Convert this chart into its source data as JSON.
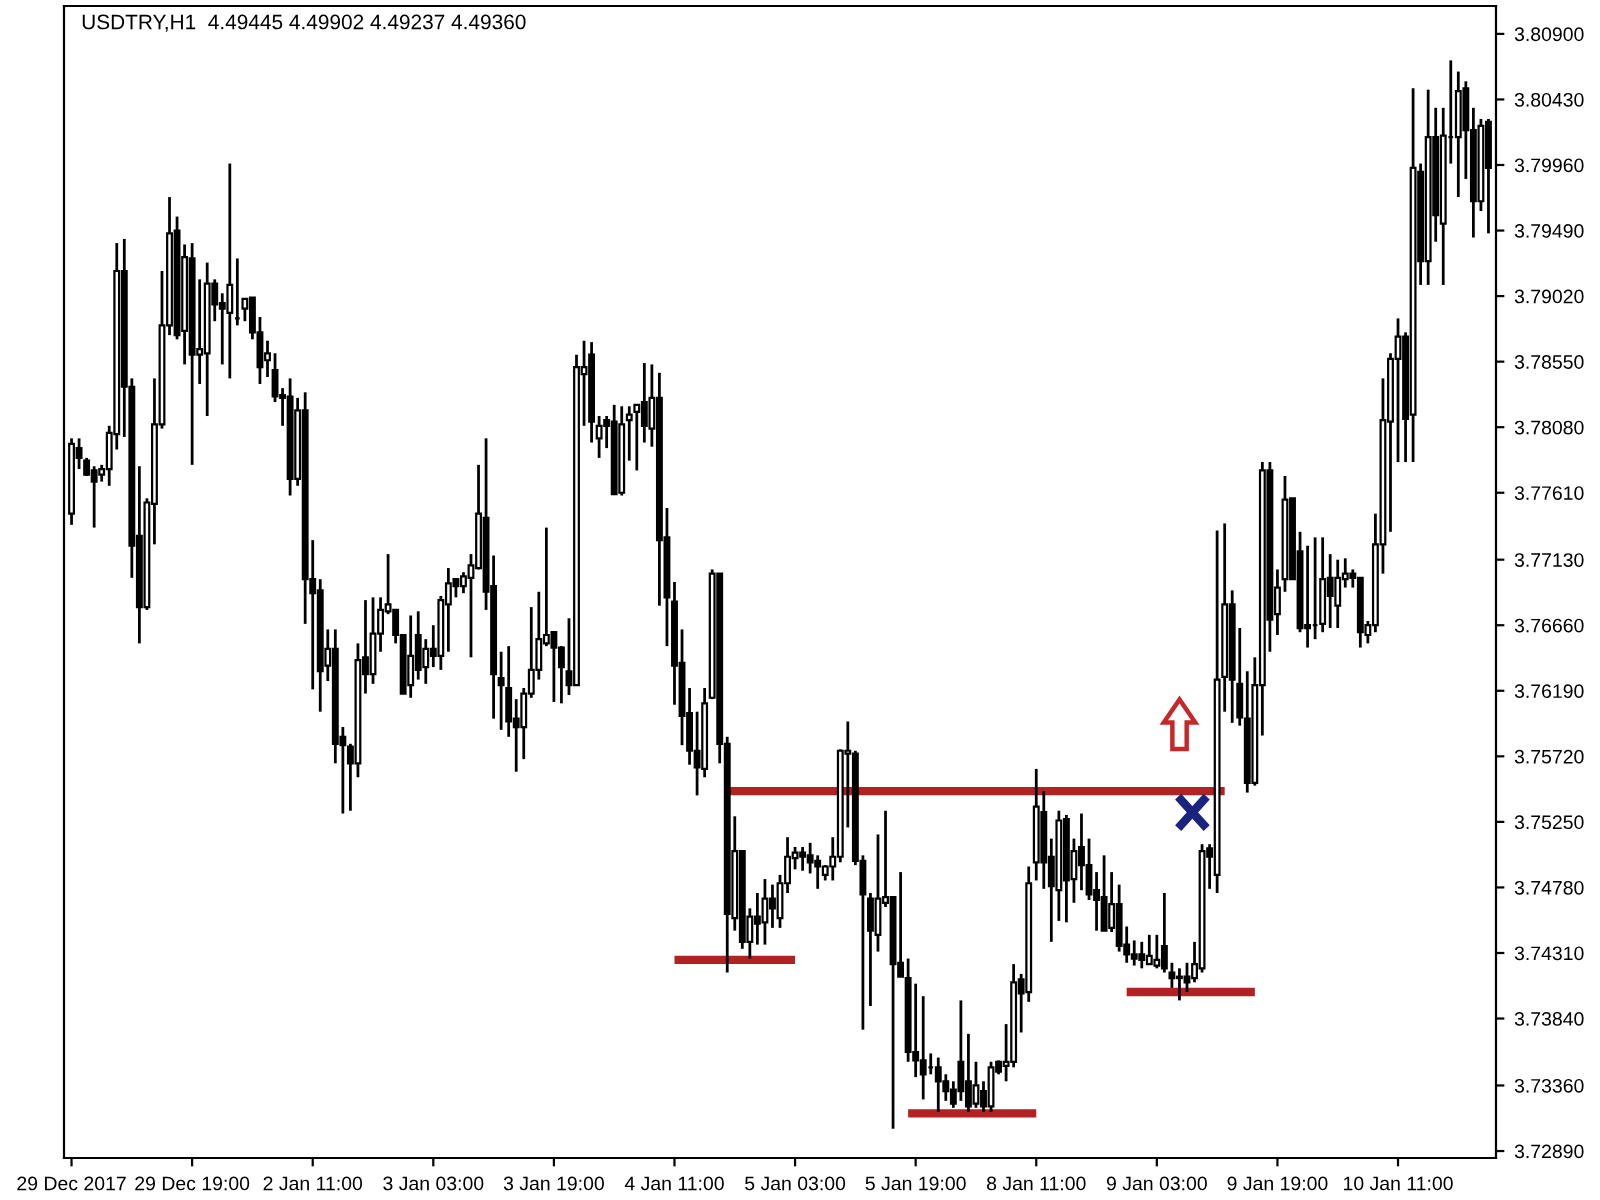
{
  "chart_data": {
    "type": "candlestick",
    "title": "USDTRY,H1  4.49445 4.49902 4.49237 4.49360",
    "categories": [
      "29 Dec 2017",
      null,
      null,
      null,
      null,
      null,
      null,
      null,
      null,
      null,
      null,
      null,
      null,
      null,
      null,
      null,
      "29 Dec 19:00",
      null,
      null,
      null,
      null,
      null,
      null,
      null,
      null,
      null,
      null,
      null,
      null,
      null,
      null,
      null,
      "2 Jan 11:00",
      null,
      null,
      null,
      null,
      null,
      null,
      null,
      null,
      null,
      null,
      null,
      null,
      null,
      null,
      null,
      "3 Jan 03:00",
      null,
      null,
      null,
      null,
      null,
      null,
      null,
      null,
      null,
      null,
      null,
      null,
      null,
      null,
      null,
      "3 Jan 19:00",
      null,
      null,
      null,
      null,
      null,
      null,
      null,
      null,
      null,
      null,
      null,
      null,
      null,
      null,
      null,
      "4 Jan 11:00",
      null,
      null,
      null,
      null,
      null,
      null,
      null,
      null,
      null,
      null,
      null,
      null,
      null,
      null,
      null,
      "5 Jan 03:00",
      null,
      null,
      null,
      null,
      null,
      null,
      null,
      null,
      null,
      null,
      null,
      null,
      null,
      null,
      null,
      "5 Jan 19:00",
      null,
      null,
      null,
      null,
      null,
      null,
      null,
      null,
      null,
      null,
      null,
      null,
      null,
      null,
      null,
      "8 Jan 11:00",
      null,
      null,
      null,
      null,
      null,
      null,
      null,
      null,
      null,
      null,
      null,
      null,
      null,
      null,
      null,
      "9 Jan 03:00",
      null,
      null,
      null,
      null,
      null,
      null,
      null,
      null,
      null,
      null,
      null,
      null,
      null,
      null,
      null,
      "9 Jan 19:00",
      null,
      null,
      null,
      null,
      null,
      null,
      null,
      null,
      null,
      null,
      null,
      null,
      null,
      null,
      null,
      "10 Jan 11:00",
      null,
      null,
      null,
      null,
      null,
      null,
      null,
      null,
      null,
      null,
      null,
      null
    ],
    "ohlc": [
      [
        3.7746,
        3.78,
        3.7738,
        3.7796
      ],
      [
        3.7793,
        3.78,
        3.7778,
        3.7786
      ],
      [
        3.7784,
        3.7786,
        3.7773,
        3.7774
      ],
      [
        3.7777,
        3.778,
        3.7736,
        3.7769
      ],
      [
        3.7774,
        3.7781,
        3.7769,
        3.7778
      ],
      [
        3.7778,
        3.7809,
        3.7766,
        3.7804
      ],
      [
        3.7803,
        3.794,
        3.7792,
        3.792
      ],
      [
        3.792,
        3.7943,
        3.7801,
        3.7837
      ],
      [
        3.7837,
        3.7843,
        3.77,
        3.7723
      ],
      [
        3.773,
        3.778,
        3.7653,
        3.7679
      ],
      [
        3.7679,
        3.7757,
        3.7677,
        3.7754
      ],
      [
        3.7753,
        3.7843,
        3.7724,
        3.781
      ],
      [
        3.781,
        3.792,
        3.7807,
        3.7881
      ],
      [
        3.7881,
        3.7973,
        3.7874,
        3.7947
      ],
      [
        3.7949,
        3.7959,
        3.7871,
        3.7874
      ],
      [
        3.7877,
        3.7939,
        3.7853,
        3.793
      ],
      [
        3.7929,
        3.794,
        3.7781,
        3.786
      ],
      [
        3.786,
        3.7914,
        3.7839,
        3.7864
      ],
      [
        3.7861,
        3.7926,
        3.7816,
        3.7911
      ],
      [
        3.7911,
        3.7914,
        3.7884,
        3.7896
      ],
      [
        3.7897,
        3.7904,
        3.7853,
        3.7893
      ],
      [
        3.789,
        3.7997,
        3.7843,
        3.791
      ],
      [
        3.7886,
        3.7929,
        3.7881,
        3.7886
      ],
      [
        3.7893,
        3.79,
        3.7884,
        3.79
      ],
      [
        3.7901,
        3.7901,
        3.7871,
        3.7876
      ],
      [
        3.7876,
        3.7887,
        3.7839,
        3.7851
      ],
      [
        3.7856,
        3.787,
        3.7844,
        3.7861
      ],
      [
        3.7849,
        3.7861,
        3.7826,
        3.783
      ],
      [
        3.7831,
        3.7836,
        3.7809,
        3.7829
      ],
      [
        3.783,
        3.7843,
        3.7759,
        3.7771
      ],
      [
        3.7771,
        3.7829,
        3.7766,
        3.782
      ],
      [
        3.782,
        3.7833,
        3.7667,
        3.7699
      ],
      [
        3.7699,
        3.7727,
        3.762,
        3.7689
      ],
      [
        3.7691,
        3.7699,
        3.7604,
        3.7633
      ],
      [
        3.7637,
        3.7663,
        3.7626,
        3.7649
      ],
      [
        3.7649,
        3.7663,
        3.7567,
        3.7581
      ],
      [
        3.7586,
        3.7593,
        3.7531,
        3.758
      ],
      [
        3.7579,
        3.7581,
        3.7533,
        3.7567
      ],
      [
        3.7567,
        3.7653,
        3.7557,
        3.7641
      ],
      [
        3.7643,
        3.7684,
        3.7617,
        3.7631
      ],
      [
        3.7631,
        3.7686,
        3.7624,
        3.766
      ],
      [
        3.766,
        3.7686,
        3.7647,
        3.7677
      ],
      [
        3.7676,
        3.7717,
        3.7674,
        3.7681
      ],
      [
        3.7677,
        3.7677,
        3.7653,
        3.7659
      ],
      [
        3.7659,
        3.7659,
        3.7617,
        3.7617
      ],
      [
        3.7623,
        3.7673,
        3.7614,
        3.7644
      ],
      [
        3.7659,
        3.7676,
        3.7627,
        3.7634
      ],
      [
        3.7636,
        3.7656,
        3.7624,
        3.7649
      ],
      [
        3.7649,
        3.7666,
        3.7636,
        3.7644
      ],
      [
        3.7644,
        3.7687,
        3.7634,
        3.7684
      ],
      [
        3.7681,
        3.7707,
        3.7647,
        3.7696
      ],
      [
        3.7699,
        3.7699,
        3.7686,
        3.7694
      ],
      [
        3.7694,
        3.7704,
        3.7689,
        3.7701
      ],
      [
        3.77,
        3.7717,
        3.7643,
        3.7709
      ],
      [
        3.7707,
        3.7781,
        3.7706,
        3.7746
      ],
      [
        3.7743,
        3.78,
        3.7677,
        3.769
      ],
      [
        3.7694,
        3.7716,
        3.7599,
        3.7631
      ],
      [
        3.7628,
        3.7647,
        3.7591,
        3.7623
      ],
      [
        3.7621,
        3.7651,
        3.7586,
        3.7597
      ],
      [
        3.7599,
        3.7613,
        3.7561,
        3.7593
      ],
      [
        3.7593,
        3.7621,
        3.757,
        3.7617
      ],
      [
        3.7617,
        3.7679,
        3.7614,
        3.7634
      ],
      [
        3.7634,
        3.769,
        3.7627,
        3.7656
      ],
      [
        3.7653,
        3.7736,
        3.7651,
        3.7659
      ],
      [
        3.7661,
        3.7661,
        3.7611,
        3.765
      ],
      [
        3.765,
        3.7651,
        3.761,
        3.7636
      ],
      [
        3.7633,
        3.7671,
        3.7616,
        3.7623
      ],
      [
        3.7623,
        3.786,
        3.7623,
        3.7851
      ],
      [
        3.7846,
        3.787,
        3.7809,
        3.7851
      ],
      [
        3.786,
        3.7869,
        3.7797,
        3.7812
      ],
      [
        3.78,
        3.7816,
        3.7786,
        3.7809
      ],
      [
        3.7813,
        3.7816,
        3.7793,
        3.7809
      ],
      [
        3.7812,
        3.7824,
        3.776,
        3.776
      ],
      [
        3.7761,
        3.7823,
        3.7759,
        3.781
      ],
      [
        3.7813,
        3.7823,
        3.7784,
        3.7817
      ],
      [
        3.7819,
        3.7824,
        3.7777,
        3.7824
      ],
      [
        3.7826,
        3.7854,
        3.7797,
        3.7809
      ],
      [
        3.7807,
        3.7853,
        3.7794,
        3.7829
      ],
      [
        3.7829,
        3.7847,
        3.768,
        3.7727
      ],
      [
        3.7729,
        3.775,
        3.7651,
        3.7686
      ],
      [
        3.7683,
        3.7697,
        3.7609,
        3.7637
      ],
      [
        3.7639,
        3.7663,
        3.758,
        3.7601
      ],
      [
        3.7603,
        3.7621,
        3.7566,
        3.7576
      ],
      [
        3.7576,
        3.7604,
        3.7544,
        3.7564
      ],
      [
        3.7563,
        3.7621,
        3.7557,
        3.761
      ],
      [
        3.7614,
        3.7706,
        3.7613,
        3.7703
      ],
      [
        3.7703,
        3.7703,
        3.7567,
        3.7581
      ],
      [
        3.7581,
        3.7586,
        3.7417,
        3.7459
      ],
      [
        3.7456,
        3.7529,
        3.7447,
        3.7504
      ],
      [
        3.7504,
        3.7504,
        3.7434,
        3.7439
      ],
      [
        3.7439,
        3.7463,
        3.7427,
        3.7457
      ],
      [
        3.7457,
        3.7474,
        3.7437,
        3.7452
      ],
      [
        3.7453,
        3.7484,
        3.7437,
        3.747
      ],
      [
        3.747,
        3.748,
        3.7449,
        3.7463
      ],
      [
        3.7456,
        3.7487,
        3.7449,
        3.7481
      ],
      [
        3.7481,
        3.7514,
        3.7474,
        3.75
      ],
      [
        3.7499,
        3.7507,
        3.7491,
        3.7503
      ],
      [
        3.7503,
        3.7507,
        3.749,
        3.75
      ],
      [
        3.7501,
        3.751,
        3.7488,
        3.7496
      ],
      [
        3.7497,
        3.7501,
        3.7477,
        3.7493
      ],
      [
        3.7487,
        3.7494,
        3.7483,
        3.7493
      ],
      [
        3.7493,
        3.7514,
        3.7483,
        3.75
      ],
      [
        3.75,
        3.7577,
        3.7496,
        3.7576
      ],
      [
        3.7574,
        3.7597,
        3.7521,
        3.7576
      ],
      [
        3.7574,
        3.7576,
        3.7494,
        3.7497
      ],
      [
        3.7497,
        3.7501,
        3.7376,
        3.7473
      ],
      [
        3.747,
        3.7474,
        3.7393,
        3.7447
      ],
      [
        3.7444,
        3.7516,
        3.7432,
        3.747
      ],
      [
        3.7467,
        3.7533,
        3.7464,
        3.7471
      ],
      [
        3.7471,
        3.7471,
        3.7305,
        3.7423
      ],
      [
        3.7424,
        3.7489,
        3.7414,
        3.7414
      ],
      [
        3.7413,
        3.7427,
        3.7353,
        3.736
      ],
      [
        3.736,
        3.7409,
        3.7342,
        3.7354
      ],
      [
        3.7354,
        3.74,
        3.7326,
        3.7344
      ],
      [
        3.7349,
        3.7359,
        3.7344,
        3.7349
      ],
      [
        3.7349,
        3.7356,
        3.7317,
        3.7339
      ],
      [
        3.7339,
        3.7344,
        3.7325,
        3.7332
      ],
      [
        3.7333,
        3.7339,
        3.732,
        3.7323
      ],
      [
        3.7353,
        3.7397,
        3.7325,
        3.7332
      ],
      [
        3.7339,
        3.7373,
        3.7317,
        3.7321
      ],
      [
        3.7323,
        3.7353,
        3.732,
        3.7336
      ],
      [
        3.7332,
        3.7339,
        3.7317,
        3.7321
      ],
      [
        3.7321,
        3.7353,
        3.7317,
        3.7349
      ],
      [
        3.7353,
        3.7354,
        3.7344,
        3.7346
      ],
      [
        3.735,
        3.738,
        3.7339,
        3.7353
      ],
      [
        3.7353,
        3.7423,
        3.7349,
        3.741
      ],
      [
        3.7412,
        3.7416,
        3.7374,
        3.7402
      ],
      [
        3.7403,
        3.7493,
        3.7396,
        3.7481
      ],
      [
        3.7496,
        3.7563,
        3.7483,
        3.7536
      ],
      [
        3.7532,
        3.7547,
        3.7477,
        3.7496
      ],
      [
        3.75,
        3.7513,
        3.7439,
        3.7479
      ],
      [
        3.7476,
        3.7533,
        3.7454,
        3.7526
      ],
      [
        3.7527,
        3.753,
        3.7453,
        3.7483
      ],
      [
        3.7484,
        3.7513,
        3.7467,
        3.7504
      ],
      [
        3.7507,
        3.7531,
        3.7476,
        3.7494
      ],
      [
        3.7494,
        3.7513,
        3.7469,
        3.7473
      ],
      [
        3.7476,
        3.7489,
        3.7447,
        3.7469
      ],
      [
        3.7471,
        3.7501,
        3.7447,
        3.7447
      ],
      [
        3.7449,
        3.7489,
        3.7446,
        3.7466
      ],
      [
        3.7466,
        3.748,
        3.7432,
        3.7436
      ],
      [
        3.7437,
        3.745,
        3.7424,
        3.743
      ],
      [
        3.743,
        3.744,
        3.7422,
        3.7427
      ],
      [
        3.743,
        3.7439,
        3.742,
        3.7426
      ],
      [
        3.7423,
        3.7444,
        3.7423,
        3.7429
      ],
      [
        3.7422,
        3.7444,
        3.742,
        3.7426
      ],
      [
        3.7436,
        3.7474,
        3.7417,
        3.742
      ],
      [
        3.7417,
        3.7424,
        3.7406,
        3.7413
      ],
      [
        3.7414,
        3.742,
        3.7397,
        3.7413
      ],
      [
        3.7414,
        3.7424,
        3.7403,
        3.741
      ],
      [
        3.7413,
        3.7439,
        3.741,
        3.7423
      ],
      [
        3.742,
        3.7509,
        3.7417,
        3.7504
      ],
      [
        3.7506,
        3.7509,
        3.7477,
        3.75
      ],
      [
        3.7487,
        3.7734,
        3.7474,
        3.7627
      ],
      [
        3.7629,
        3.7739,
        3.7604,
        3.7681
      ],
      [
        3.7681,
        3.7691,
        3.7596,
        3.7627
      ],
      [
        3.7624,
        3.7664,
        3.7594,
        3.76
      ],
      [
        3.7599,
        3.7633,
        3.7546,
        3.7553
      ],
      [
        3.7553,
        3.7643,
        3.7551,
        3.7623
      ],
      [
        3.7623,
        3.7783,
        3.7587,
        3.7777
      ],
      [
        3.7777,
        3.7783,
        3.7647,
        3.767
      ],
      [
        3.7674,
        3.7706,
        3.7659,
        3.7693
      ],
      [
        3.7699,
        3.7773,
        3.769,
        3.7756
      ],
      [
        3.7757,
        3.7757,
        3.7699,
        3.7699
      ],
      [
        3.7719,
        3.7733,
        3.7661,
        3.7664
      ],
      [
        3.7666,
        3.7723,
        3.765,
        3.7664
      ],
      [
        3.7666,
        3.7729,
        3.7656,
        3.7666
      ],
      [
        3.7667,
        3.7729,
        3.7661,
        3.7699
      ],
      [
        3.77,
        3.7717,
        3.7664,
        3.7687
      ],
      [
        3.768,
        3.7713,
        3.7664,
        3.77
      ],
      [
        3.7699,
        3.7714,
        3.7693,
        3.7703
      ],
      [
        3.7703,
        3.7706,
        3.7693,
        3.77
      ],
      [
        3.77,
        3.77,
        3.765,
        3.7661
      ],
      [
        3.7659,
        3.7669,
        3.7653,
        3.7666
      ],
      [
        3.7666,
        3.7746,
        3.7661,
        3.7724
      ],
      [
        3.7724,
        3.7843,
        3.7703,
        3.7813
      ],
      [
        3.7812,
        3.7861,
        3.7733,
        3.7857
      ],
      [
        3.7857,
        3.7886,
        3.7783,
        3.7873
      ],
      [
        3.7873,
        3.7876,
        3.7783,
        3.7814
      ],
      [
        3.7817,
        3.8051,
        3.7783,
        3.7994
      ],
      [
        3.7991,
        3.7997,
        3.791,
        3.7927
      ],
      [
        3.7927,
        3.805,
        3.791,
        3.8016
      ],
      [
        3.8016,
        3.8037,
        3.7941,
        3.796
      ],
      [
        3.7954,
        3.8037,
        3.791,
        3.8017
      ],
      [
        3.8016,
        3.8071,
        3.7997,
        3.8016
      ],
      [
        3.8016,
        3.8063,
        3.7973,
        3.8049
      ],
      [
        3.8051,
        3.8056,
        3.7986,
        3.8021
      ],
      [
        3.8021,
        3.8037,
        3.7944,
        3.797
      ],
      [
        3.797,
        3.8029,
        3.7963,
        3.8024
      ],
      [
        3.8027,
        3.8029,
        3.7947,
        3.7994
      ]
    ],
    "series": [
      {
        "type": "line",
        "color": "#b22222",
        "values": [
          null,
          null,
          null,
          null,
          null,
          null,
          null,
          null,
          null,
          null,
          null,
          null,
          null,
          null,
          null,
          null,
          null,
          null,
          null,
          null,
          null,
          null,
          null,
          null,
          null,
          null,
          null,
          null,
          null,
          null,
          null,
          null,
          null,
          null,
          null,
          null,
          null,
          null,
          null,
          null,
          null,
          null,
          null,
          null,
          null,
          null,
          null,
          null,
          null,
          null,
          null,
          null,
          null,
          null,
          null,
          null,
          null,
          null,
          null,
          null,
          null,
          null,
          null,
          null,
          null,
          null,
          null,
          null,
          null,
          null,
          null,
          null,
          null,
          null,
          null,
          null,
          null,
          null,
          null,
          null,
          null,
          null,
          null,
          null,
          null,
          null,
          null,
          3.7547,
          3.7547,
          3.7547,
          3.7547,
          3.7547,
          3.7547,
          3.7547,
          3.7547,
          3.7547,
          3.7547,
          3.7547,
          3.7547,
          3.7547,
          3.7547,
          3.7547,
          3.7547,
          3.7547,
          3.7547,
          3.7547,
          3.7547,
          3.7547,
          3.7547,
          3.7547,
          3.7547,
          3.7547,
          3.7547,
          3.7547,
          3.7547,
          3.7547,
          3.7547,
          3.7547,
          3.7547,
          3.7547,
          3.7547,
          3.7547,
          3.7547,
          3.7547,
          3.7547,
          3.7547,
          3.7547,
          3.7547,
          3.7547,
          3.7547,
          3.7547,
          3.7547,
          3.7547,
          3.7547,
          3.7547,
          3.7547,
          3.7547,
          3.7547,
          3.7547,
          3.7547,
          3.7547,
          3.7547,
          3.7547,
          3.7547,
          3.7547,
          3.7547,
          3.7547,
          3.7547,
          3.7547,
          3.7547,
          3.7547,
          3.7547,
          3.7547,
          3.7547,
          null,
          null,
          null,
          null,
          null,
          null,
          null,
          null,
          null,
          null,
          null,
          null,
          null,
          null,
          null,
          null,
          null,
          null,
          null,
          null,
          null,
          null,
          null,
          null,
          null,
          null,
          null,
          null,
          null,
          null,
          null,
          null,
          null,
          null,
          null
        ]
      },
      {
        "type": "line",
        "color": "#b22222",
        "values": [
          null,
          null,
          null,
          null,
          null,
          null,
          null,
          null,
          null,
          null,
          null,
          null,
          null,
          null,
          null,
          null,
          null,
          null,
          null,
          null,
          null,
          null,
          null,
          null,
          null,
          null,
          null,
          null,
          null,
          null,
          null,
          null,
          null,
          null,
          null,
          null,
          null,
          null,
          null,
          null,
          null,
          null,
          null,
          null,
          null,
          null,
          null,
          null,
          null,
          null,
          null,
          null,
          null,
          null,
          null,
          null,
          null,
          null,
          null,
          null,
          null,
          null,
          null,
          null,
          null,
          null,
          null,
          null,
          null,
          null,
          null,
          null,
          null,
          null,
          null,
          null,
          null,
          null,
          null,
          null,
          3.7426,
          3.7426,
          3.7426,
          3.7426,
          3.7426,
          3.7426,
          3.7426,
          3.7426,
          3.7426,
          3.7426,
          3.7426,
          3.7426,
          3.7426,
          3.7426,
          3.7426,
          3.7426,
          3.7426,
          null,
          null,
          null,
          null,
          null,
          null,
          null,
          null,
          null,
          null,
          null,
          null,
          null,
          null,
          3.7316,
          3.7316,
          3.7316,
          3.7316,
          3.7316,
          3.7316,
          3.7316,
          3.7316,
          3.7316,
          3.7316,
          3.7316,
          3.7316,
          3.7316,
          3.7316,
          3.7316,
          3.7316,
          3.7316,
          3.7316,
          null,
          null,
          null,
          null,
          null,
          null,
          null,
          null,
          null,
          null,
          null,
          3.7403,
          3.7403,
          3.7403,
          3.7403,
          3.7403,
          3.7403,
          3.7403,
          3.7403,
          3.7403,
          3.7403,
          3.7403,
          3.7403,
          3.7403,
          3.7403,
          3.7403,
          3.7403,
          3.7403,
          3.7403,
          null,
          null,
          null,
          null,
          null,
          null,
          null,
          null,
          null,
          null,
          null,
          null,
          null,
          null,
          null,
          null,
          null,
          null,
          null,
          null,
          null,
          null,
          null,
          null,
          null,
          null,
          null,
          null,
          null,
          null,
          null
        ]
      }
    ],
    "ylim": [
      3.7284,
      3.811
    ],
    "yticks": [
      {
        "value": 3.7289,
        "label": "3.72890"
      },
      {
        "value": 3.7336,
        "label": "3.73360"
      },
      {
        "value": 3.7384,
        "label": "3.73840"
      },
      {
        "value": 3.7431,
        "label": "3.74310"
      },
      {
        "value": 3.7478,
        "label": "3.74780"
      },
      {
        "value": 3.7525,
        "label": "3.75250"
      },
      {
        "value": 3.7572,
        "label": "3.75720"
      },
      {
        "value": 3.7619,
        "label": "3.76190"
      },
      {
        "value": 3.7666,
        "label": "3.76660"
      },
      {
        "value": 3.7713,
        "label": "3.77130"
      },
      {
        "value": 3.7761,
        "label": "3.77610"
      },
      {
        "value": 3.7808,
        "label": "3.78080"
      },
      {
        "value": 3.7855,
        "label": "3.78550"
      },
      {
        "value": 3.7902,
        "label": "3.79020"
      },
      {
        "value": 3.7949,
        "label": "3.79490"
      },
      {
        "value": 3.7996,
        "label": "3.79960"
      },
      {
        "value": 3.8043,
        "label": "3.80430"
      },
      {
        "value": 3.809,
        "label": "3.80900"
      }
    ],
    "grid": false
  }
}
